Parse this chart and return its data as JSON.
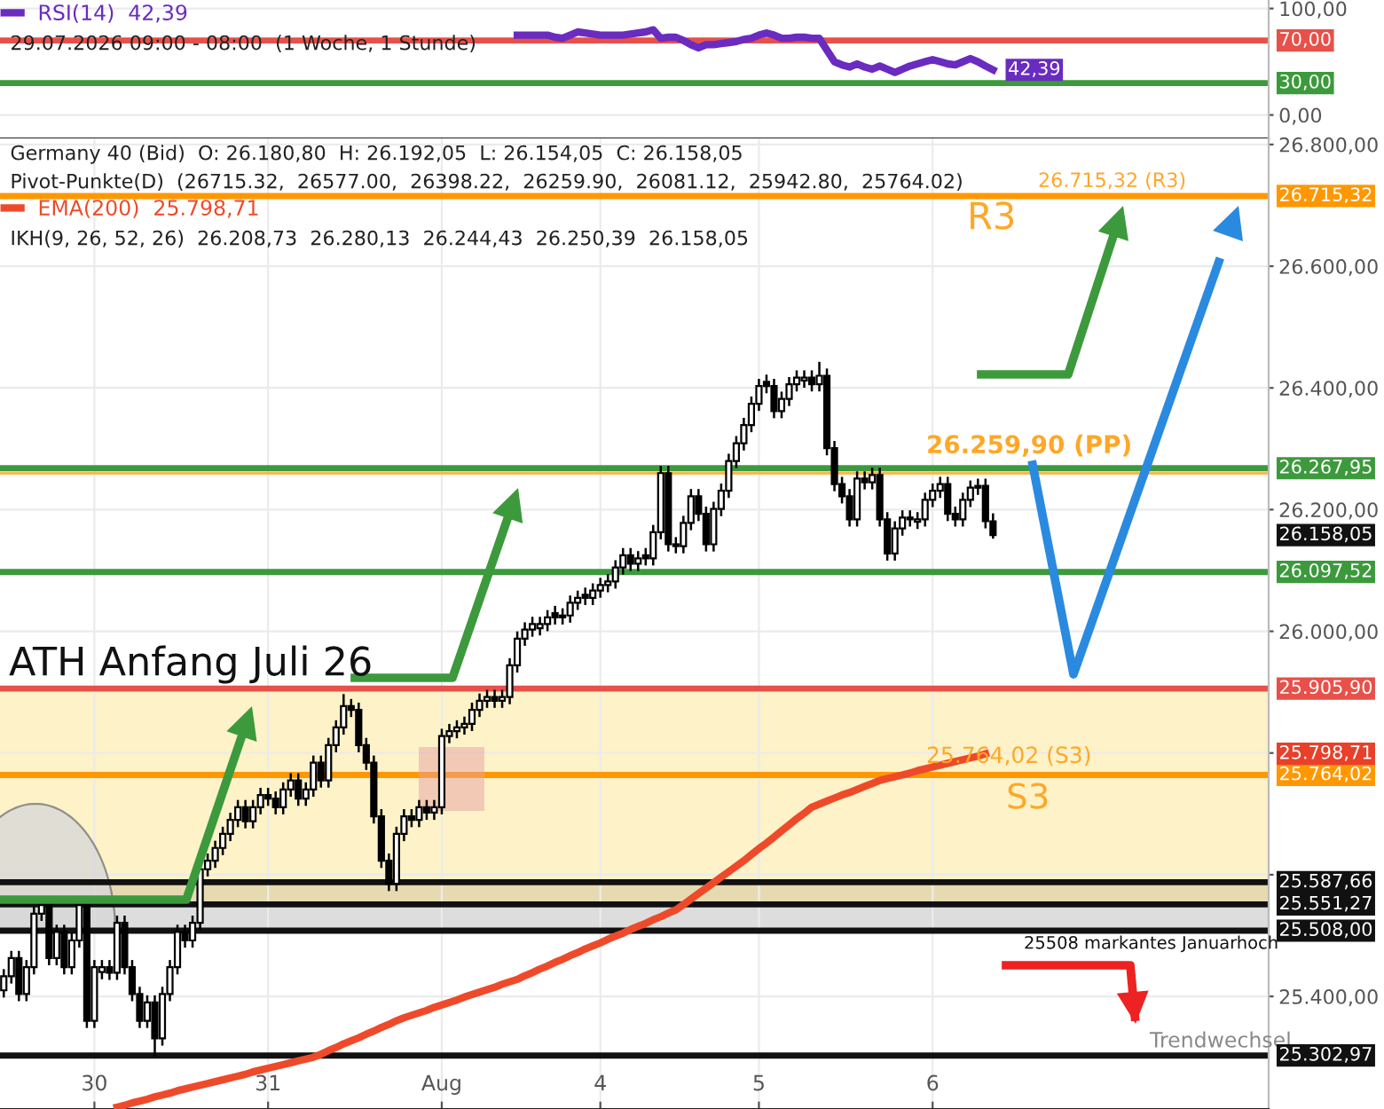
{
  "chart_data": [
    {
      "type": "line",
      "categories": [
        null,
        null,
        null,
        null,
        null,
        null,
        null,
        null,
        null,
        null,
        null,
        null,
        null,
        null,
        null,
        null,
        null,
        null,
        null,
        null,
        null,
        null,
        null,
        null,
        null,
        null,
        null,
        null,
        null,
        null,
        null,
        null,
        null,
        null,
        null,
        null,
        null,
        null,
        null,
        null,
        null,
        null,
        null,
        null,
        null,
        null,
        null,
        null,
        null,
        null,
        null,
        null,
        null,
        null,
        null,
        null,
        null,
        null,
        null,
        null,
        null,
        null,
        null,
        null,
        null,
        null,
        null,
        null,
        null,
        null,
        null,
        null,
        null,
        null,
        null,
        null,
        null,
        null,
        null,
        null,
        null,
        null,
        null,
        null,
        null,
        null,
        null,
        null,
        null,
        null,
        null,
        null,
        null,
        null,
        null,
        null,
        null,
        null,
        null,
        null,
        null,
        null,
        null,
        null,
        null,
        null,
        null,
        null,
        null,
        null,
        null,
        null,
        null,
        null,
        null,
        null,
        null,
        null,
        null,
        null,
        null,
        null,
        null,
        null,
        null,
        null,
        null,
        null,
        null,
        null,
        null,
        null,
        null,
        null,
        null,
        null,
        null,
        null,
        null,
        null,
        null,
        null,
        null,
        null,
        null,
        null,
        null,
        null,
        null,
        null,
        null,
        null,
        null,
        null,
        null,
        null,
        null,
        null,
        null,
        null,
        null,
        null,
        null,
        null,
        null,
        null,
        null,
        null
      ],
      "series": [
        {
          "name": "RSI(14)  42,39",
          "color": "#6a2bc0",
          "values": [
            null,
            null,
            null,
            null,
            null,
            null,
            null,
            null,
            null,
            null,
            null,
            null,
            null,
            null,
            null,
            null,
            null,
            null,
            null,
            null,
            null,
            null,
            null,
            null,
            null,
            null,
            null,
            null,
            null,
            null,
            null,
            null,
            null,
            null,
            null,
            null,
            null,
            null,
            null,
            null,
            null,
            null,
            null,
            null,
            null,
            null,
            null,
            null,
            null,
            null,
            null,
            null,
            null,
            null,
            null,
            null,
            null,
            null,
            null,
            null,
            null,
            null,
            null,
            null,
            null,
            null,
            null,
            null,
            75,
            75,
            75,
            75,
            75,
            73,
            72,
            75,
            78,
            77,
            76,
            75,
            75,
            75,
            75,
            76,
            77,
            78,
            80,
            72,
            73,
            73,
            70,
            66,
            63,
            66,
            66,
            67,
            68,
            69,
            71,
            72,
            75,
            77,
            75,
            72,
            72,
            73,
            73,
            72,
            72,
            61,
            50,
            47,
            45,
            48,
            45,
            43,
            46,
            43,
            40,
            43,
            46,
            48,
            50,
            52,
            50,
            48,
            47,
            50,
            53,
            50,
            46,
            42.39,
            null,
            null,
            null,
            null,
            null,
            null,
            null,
            null,
            null,
            null,
            null,
            null,
            null,
            null,
            null,
            null,
            null,
            null,
            null,
            null,
            null,
            null,
            null,
            null,
            null,
            null,
            null,
            null,
            null,
            null,
            null,
            null,
            null,
            null,
            null,
            null
          ]
        }
      ],
      "ylim": [
        -22,
        108
      ],
      "yticks": [
        {
          "value": 0,
          "label": "0,00"
        },
        {
          "value": 100,
          "label": "100,00"
        }
      ],
      "tick_labels": "y",
      "grid": true,
      "legend": "top left",
      "ref_lines": [
        {
          "axis": "y",
          "value": 70,
          "label": "70,00",
          "color": "#e8504a"
        },
        {
          "axis": "y",
          "value": 30,
          "label": "30,00",
          "color": "#3c9a3c"
        }
      ],
      "annotations": [
        "29.07.2026 09:00 - 08:00  (1 Woche, 1 Stunde)",
        {
          "text": "42,39",
          "y": 42.39
        }
      ]
    },
    {
      "type": "candlestick",
      "categories": [
        null,
        null,
        null,
        null,
        null,
        null,
        null,
        null,
        null,
        null,
        null,
        null,
        "30",
        null,
        null,
        null,
        null,
        null,
        null,
        null,
        null,
        null,
        null,
        null,
        null,
        null,
        null,
        null,
        null,
        null,
        null,
        null,
        null,
        null,
        null,
        "31",
        null,
        null,
        null,
        null,
        null,
        null,
        null,
        null,
        null,
        null,
        null,
        null,
        null,
        null,
        null,
        null,
        null,
        null,
        null,
        null,
        null,
        null,
        "Aug",
        null,
        null,
        null,
        null,
        null,
        null,
        null,
        null,
        null,
        null,
        null,
        null,
        null,
        null,
        null,
        null,
        null,
        null,
        null,
        null,
        "4",
        null,
        null,
        null,
        null,
        null,
        null,
        null,
        null,
        null,
        null,
        null,
        null,
        null,
        null,
        null,
        null,
        null,
        null,
        null,
        null,
        "5",
        null,
        null,
        null,
        null,
        null,
        null,
        null,
        null,
        null,
        null,
        null,
        null,
        null,
        null,
        null,
        null,
        null,
        null,
        null,
        null,
        null,
        null,
        "6",
        null,
        null,
        null,
        null,
        null,
        null,
        null,
        null
      ],
      "ohlc": [
        [
          25410,
          25443,
          25400,
          25433
        ],
        [
          25433,
          25473,
          25423,
          25463
        ],
        [
          25463,
          25473,
          25394,
          25404
        ],
        [
          25404,
          25458,
          25394,
          25448
        ],
        [
          25448,
          25546,
          25438,
          25536
        ],
        [
          25536,
          25560,
          25526,
          25550
        ],
        [
          25550,
          25560,
          25453,
          25463
        ],
        [
          25463,
          25516,
          25453,
          25506
        ],
        [
          25506,
          25516,
          25438,
          25448
        ],
        [
          25448,
          25502,
          25438,
          25492
        ],
        [
          25492,
          25560,
          25482,
          25550
        ],
        [
          25550,
          25560,
          25350,
          25360
        ],
        [
          25360,
          25458,
          25350,
          25448
        ],
        [
          25440,
          25458,
          25430,
          25448
        ],
        [
          25448,
          25458,
          25429,
          25439
        ],
        [
          25439,
          25531,
          25429,
          25521
        ],
        [
          25521,
          25531,
          25438,
          25448
        ],
        [
          25448,
          25458,
          25394,
          25404
        ],
        [
          25404,
          25414,
          25350,
          25360
        ],
        [
          25360,
          25400,
          25350,
          25390
        ],
        [
          25390,
          25400,
          25303,
          25331
        ],
        [
          25331,
          25414,
          25321,
          25404
        ],
        [
          25404,
          25458,
          25394,
          25448
        ],
        [
          25448,
          25516,
          25438,
          25506
        ],
        [
          25506,
          25516,
          25482,
          25492
        ],
        [
          25492,
          25531,
          25482,
          25521
        ],
        [
          25521,
          25619,
          25511,
          25609
        ],
        [
          25609,
          25633,
          25599,
          25623
        ],
        [
          25623,
          25654,
          25613,
          25644
        ],
        [
          25644,
          25677,
          25634,
          25667
        ],
        [
          25667,
          25700,
          25657,
          25690
        ],
        [
          25690,
          25721,
          25680,
          25711
        ],
        [
          25711,
          25721,
          25678,
          25688
        ],
        [
          25688,
          25721,
          25678,
          25711
        ],
        [
          25711,
          25741,
          25701,
          25731
        ],
        [
          25731,
          25741,
          25715,
          25725
        ],
        [
          25725,
          25735,
          25701,
          25711
        ],
        [
          25711,
          25750,
          25701,
          25740
        ],
        [
          25740,
          25765,
          25730,
          25755
        ],
        [
          25755,
          25765,
          25715,
          25725
        ],
        [
          25725,
          25750,
          25715,
          25740
        ],
        [
          25740,
          25794,
          25730,
          25784
        ],
        [
          25784,
          25794,
          25745,
          25755
        ],
        [
          25755,
          25823,
          25745,
          25813
        ],
        [
          25813,
          25852,
          25803,
          25842
        ],
        [
          25842,
          25895,
          25832,
          25877
        ],
        [
          25877,
          25887,
          25861,
          25871
        ],
        [
          25871,
          25881,
          25803,
          25813
        ],
        [
          25813,
          25823,
          25774,
          25784
        ],
        [
          25784,
          25794,
          25686,
          25696
        ],
        [
          25696,
          25706,
          25613,
          25623
        ],
        [
          25623,
          25633,
          25575,
          25585
        ],
        [
          25585,
          25677,
          25575,
          25667
        ],
        [
          25667,
          25706,
          25657,
          25696
        ],
        [
          25696,
          25706,
          25680,
          25690
        ],
        [
          25690,
          25721,
          25680,
          25711
        ],
        [
          25711,
          25721,
          25692,
          25702
        ],
        [
          25702,
          25721,
          25692,
          25711
        ],
        [
          25711,
          25838,
          25701,
          25828
        ],
        [
          25828,
          25846,
          25818,
          25836
        ],
        [
          25836,
          25852,
          25826,
          25842
        ],
        [
          25842,
          25858,
          25832,
          25848
        ],
        [
          25848,
          25881,
          25838,
          25871
        ],
        [
          25871,
          25896,
          25861,
          25886
        ],
        [
          25886,
          25902,
          25876,
          25892
        ],
        [
          25892,
          25902,
          25876,
          25886
        ],
        [
          25886,
          25902,
          25876,
          25892
        ],
        [
          25892,
          25954,
          25882,
          25944
        ],
        [
          25944,
          25998,
          25934,
          25988
        ],
        [
          25988,
          26013,
          25978,
          26003
        ],
        [
          26003,
          26022,
          25993,
          26012
        ],
        [
          26005,
          26022,
          25995,
          26012
        ],
        [
          26012,
          26033,
          26002,
          26023
        ],
        [
          26030,
          26040,
          26013,
          26023
        ],
        [
          26023,
          26036,
          26013,
          26026
        ],
        [
          26026,
          26057,
          26016,
          26047
        ],
        [
          26047,
          26065,
          26037,
          26055
        ],
        [
          26060,
          26070,
          26045,
          26055
        ],
        [
          26055,
          26077,
          26045,
          26067
        ],
        [
          26067,
          26086,
          26057,
          26076
        ],
        [
          26076,
          26092,
          26066,
          26082
        ],
        [
          26082,
          26115,
          26072,
          26105
        ],
        [
          26105,
          26135,
          26095,
          26125
        ],
        [
          26125,
          26135,
          26101,
          26111
        ],
        [
          26111,
          26130,
          26101,
          26120
        ],
        [
          26125,
          26135,
          26110,
          26120
        ],
        [
          26120,
          26173,
          26110,
          26163
        ],
        [
          26163,
          26270,
          26153,
          26260
        ],
        [
          26260,
          26270,
          26133,
          26143
        ],
        [
          26143,
          26153,
          26130,
          26140
        ],
        [
          26140,
          26188,
          26130,
          26178
        ],
        [
          26178,
          26232,
          26168,
          26222
        ],
        [
          26222,
          26232,
          26183,
          26193
        ],
        [
          26193,
          26203,
          26133,
          26143
        ],
        [
          26143,
          26211,
          26133,
          26201
        ],
        [
          26201,
          26241,
          26191,
          26231
        ],
        [
          26231,
          26290,
          26221,
          26280
        ],
        [
          26280,
          26319,
          26270,
          26309
        ],
        [
          26309,
          26349,
          26299,
          26339
        ],
        [
          26339,
          26384,
          26329,
          26374
        ],
        [
          26374,
          26413,
          26364,
          26403
        ],
        [
          26410,
          26420,
          26393,
          26403
        ],
        [
          26403,
          26413,
          26352,
          26362
        ],
        [
          26362,
          26392,
          26352,
          26382
        ],
        [
          26382,
          26416,
          26372,
          26406
        ],
        [
          26406,
          26427,
          26396,
          26417
        ],
        [
          26412,
          26427,
          26402,
          26417
        ],
        [
          26417,
          26427,
          26396,
          26406
        ],
        [
          26406,
          26441,
          26396,
          26420
        ],
        [
          26420,
          26430,
          26291,
          26301
        ],
        [
          26301,
          26311,
          26232,
          26242
        ],
        [
          26242,
          26252,
          26212,
          26222
        ],
        [
          26222,
          26232,
          26174,
          26184
        ],
        [
          26184,
          26261,
          26174,
          26251
        ],
        [
          26251,
          26261,
          26235,
          26245
        ],
        [
          26245,
          26267,
          26235,
          26257
        ],
        [
          26257,
          26267,
          26174,
          26184
        ],
        [
          26184,
          26194,
          26118,
          26128
        ],
        [
          26128,
          26179,
          26118,
          26169
        ],
        [
          26169,
          26197,
          26159,
          26187
        ],
        [
          26187,
          26197,
          26174,
          26184
        ],
        [
          26180,
          26194,
          26170,
          26184
        ],
        [
          26184,
          26226,
          26174,
          26216
        ],
        [
          26216,
          26241,
          26206,
          26231
        ],
        [
          26231,
          26252,
          26221,
          26242
        ],
        [
          26242,
          26252,
          26183,
          26193
        ],
        [
          26193,
          26203,
          26174,
          26184
        ],
        [
          26184,
          26226,
          26174,
          26216
        ],
        [
          26216,
          26246,
          26206,
          26236
        ],
        [
          26236,
          26249,
          26226,
          26239
        ],
        [
          26239,
          26249,
          26171,
          26181
        ],
        [
          26180.8,
          26192.05,
          26154.05,
          26158.05
        ]
      ],
      "series": [
        {
          "name": "EMA(200)  25.798,71",
          "type": "line",
          "color": "#ee4a2a",
          "values": [
            null,
            null,
            null,
            null,
            null,
            null,
            null,
            null,
            null,
            null,
            null,
            null,
            null,
            null,
            null,
            25218,
            25221,
            25225,
            25228,
            25231,
            25235,
            25238,
            25241,
            25245,
            25248,
            25251,
            25254,
            25257,
            25260,
            25263,
            25266,
            25269,
            25272,
            25276,
            25279,
            25282,
            25285,
            25288,
            25291,
            25294,
            25297,
            25300,
            25305,
            25311,
            25316,
            25322,
            25327,
            25332,
            25338,
            25343,
            25349,
            25354,
            25360,
            25365,
            25369,
            25373,
            25377,
            25382,
            25386,
            25390,
            25394,
            25399,
            25403,
            25407,
            25411,
            25415,
            25420,
            25424,
            25428,
            25434,
            25439,
            25445,
            25450,
            25456,
            25461,
            25467,
            25472,
            25478,
            25483,
            25488,
            25494,
            25499,
            25504,
            25510,
            25515,
            25520,
            25526,
            25531,
            25537,
            25542,
            25551,
            25560,
            25569,
            25578,
            25587,
            25596,
            25605,
            25614,
            25623,
            25633,
            25643,
            25652,
            25662,
            25672,
            25682,
            25692,
            25701,
            25711,
            25716,
            25721,
            25726,
            25731,
            25735,
            25740,
            25745,
            25750,
            25755,
            25758,
            25761,
            25764,
            25767,
            25771,
            25774,
            25777,
            25780,
            25783,
            25786,
            25789,
            25792,
            25795,
            25798.71,
            null
          ]
        }
      ],
      "ylim": [
        25215,
        26810
      ],
      "yticks": [
        {
          "value": 25400,
          "label": "25.400,00"
        },
        {
          "value": 25600,
          "label": null
        },
        {
          "value": 25800,
          "label": null
        },
        {
          "value": 26000,
          "label": "26.000,00"
        },
        {
          "value": 26200,
          "label": "26.200,00"
        },
        {
          "value": 26400,
          "label": "26.400,00"
        },
        {
          "value": 26600,
          "label": "26.600,00"
        },
        {
          "value": 26800,
          "label": "26.800,00"
        }
      ],
      "grid": true,
      "legend": "top left",
      "bands": [
        {
          "axis": "y",
          "from": 25587.66,
          "to": 25905.9,
          "color": "#fdf2c8"
        },
        {
          "axis": "y",
          "from": 25551.27,
          "to": 25587.66,
          "color": "#e6dbb0"
        },
        {
          "axis": "y",
          "from": 25508,
          "to": 25551.27,
          "color": "#dddddd"
        }
      ],
      "ref_lines": [
        {
          "axis": "y",
          "value": 26715.32,
          "label": "26.715,32",
          "color": "#ff9800"
        },
        {
          "axis": "y",
          "value": 26267.95,
          "label": "26.267,95",
          "color": "#3c9a3c"
        },
        {
          "axis": "y",
          "value": 26259.9,
          "color": "#ffb74d"
        },
        {
          "axis": "y",
          "value": 26097.52,
          "label": "26.097,52",
          "color": "#3c9a3c"
        },
        {
          "axis": "y",
          "value": 25905.9,
          "label": "25.905,90",
          "color": "#e8504a"
        },
        {
          "axis": "y",
          "value": 25764.02,
          "label": "25.764,02",
          "color": "#ff9800"
        },
        {
          "axis": "y",
          "value": 25587.66,
          "label": "25.587,66",
          "color": "#111111"
        },
        {
          "axis": "y",
          "value": 25551.27,
          "label": "25.551,27",
          "color": "#111111"
        },
        {
          "axis": "y",
          "value": 25508,
          "label": "25.508,00",
          "color": "#111111"
        },
        {
          "axis": "y",
          "value": 25302.97,
          "label": "25.302,97",
          "color": "#111111"
        }
      ],
      "annotations": [
        "Germany 40 (Bid)  O: 26.180,80  H: 26.192,05  L: 26.154,05  C: 26.158,05",
        "Pivot-Punkte(D)  (26715.32,  26577.00,  26398.22,  26259.90,  26081.12,  25942.80,  25764.02)",
        "IKH(9, 26, 52, 26)  26.208,73  26.280,13  26.244,43  26.250,39  26.158,05",
        {
          "text": "ATH Anfang Juli 26",
          "y": 25905.9
        },
        {
          "text": "R3",
          "y": 26715.32
        },
        {
          "text": "26.715,32 (R3)",
          "y": 26715.32
        },
        {
          "text": "26.259,90 (PP)",
          "y": 26259.9
        },
        {
          "text": "25.764,02 (S3)",
          "y": 25764.02
        },
        {
          "text": "S3",
          "y": 25764.02
        },
        {
          "text": "25508 markantes Januarhoch",
          "y": 25508
        },
        "Trendwechsel",
        "26.158,05",
        "25.798,71"
      ]
    }
  ]
}
